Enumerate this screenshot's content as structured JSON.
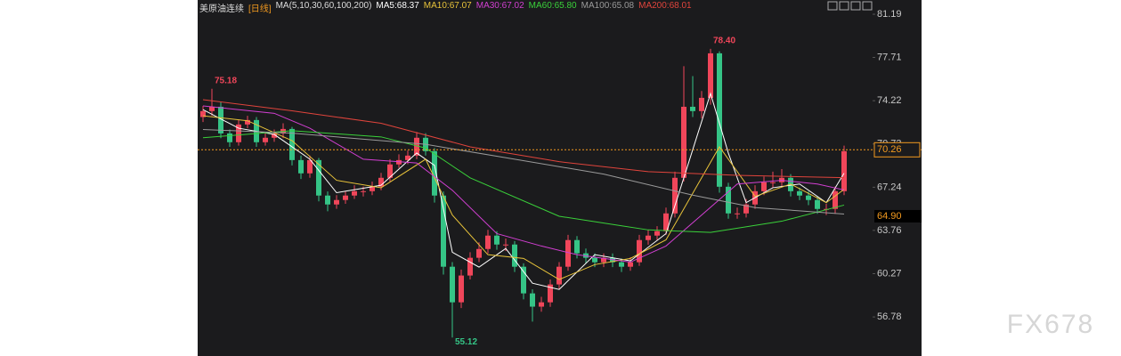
{
  "chart_data": {
    "type": "candlestick",
    "title": "美原油连续",
    "period": "[日线]",
    "ma_label": "MA(5,10,30,60,100,200)",
    "ylim": [
      53.63,
      82.34
    ],
    "yticks": [
      81.19,
      77.71,
      74.22,
      70.73,
      67.24,
      63.76,
      60.27,
      56.78
    ],
    "up_color": "#f0465a",
    "down_color": "#35c486",
    "open": [
      72.9,
      73.38,
      73.73,
      71.58,
      70.87,
      72.3,
      72.66,
      70.87,
      71.23,
      71.58,
      71.94,
      69.43,
      68.36,
      69.43,
      66.57,
      65.85,
      66.21,
      66.57,
      66.92,
      66.92,
      67.28,
      68.0,
      69.08,
      69.43,
      69.79,
      71.23,
      70.15,
      66.57,
      60.83,
      57.96,
      60.12,
      61.55,
      62.26,
      63.34,
      62.62,
      62.62,
      60.83,
      58.68,
      57.61,
      57.96,
      59.4,
      60.83,
      62.98,
      61.91,
      61.55,
      61.19,
      61.55,
      61.19,
      60.83,
      61.19,
      62.98,
      63.34,
      63.7,
      65.13,
      68.0,
      73.73,
      73.38,
      74.45,
      78.04,
      67.28,
      65.13,
      65.13,
      65.85,
      66.92,
      67.64,
      67.64,
      68.0,
      66.92,
      66.57,
      66.21,
      65.49,
      65.49,
      66.92
    ],
    "close": [
      73.38,
      73.73,
      71.58,
      70.87,
      72.3,
      72.66,
      70.87,
      71.23,
      71.58,
      71.94,
      69.43,
      68.36,
      69.43,
      66.57,
      65.85,
      66.21,
      66.57,
      66.92,
      66.92,
      67.28,
      68.0,
      69.08,
      69.43,
      69.79,
      71.23,
      70.15,
      66.57,
      60.83,
      57.96,
      60.12,
      61.55,
      62.26,
      63.34,
      62.62,
      62.62,
      60.83,
      58.68,
      57.61,
      57.96,
      59.4,
      60.83,
      62.98,
      61.91,
      61.55,
      61.19,
      61.55,
      61.19,
      60.83,
      61.19,
      62.98,
      63.34,
      63.7,
      65.13,
      68.0,
      73.73,
      73.38,
      74.45,
      78.04,
      67.28,
      65.13,
      65.13,
      65.85,
      66.92,
      67.64,
      67.64,
      68.0,
      66.92,
      66.57,
      66.21,
      65.49,
      65.49,
      66.92,
      70.15
    ],
    "high": [
      73.8,
      75.18,
      74.1,
      71.9,
      72.7,
      73.0,
      72.9,
      71.6,
      71.9,
      72.4,
      72.1,
      69.8,
      69.8,
      69.6,
      66.9,
      66.6,
      66.9,
      67.4,
      67.3,
      67.7,
      68.4,
      69.5,
      69.9,
      70.2,
      71.7,
      71.6,
      70.4,
      66.9,
      61.2,
      60.6,
      62.0,
      62.8,
      63.8,
      63.7,
      63.1,
      62.9,
      61.1,
      59.0,
      58.4,
      59.8,
      61.2,
      63.4,
      63.3,
      62.3,
      61.9,
      61.9,
      61.9,
      61.5,
      61.6,
      63.4,
      63.8,
      64.1,
      65.6,
      68.5,
      77.0,
      76.2,
      75.0,
      78.4,
      78.2,
      67.6,
      65.6,
      66.3,
      67.4,
      68.1,
      68.5,
      68.7,
      68.3,
      67.2,
      66.9,
      66.5,
      65.9,
      67.3,
      70.6
    ],
    "low": [
      72.5,
      73.0,
      71.2,
      70.5,
      70.6,
      72.0,
      70.5,
      70.6,
      70.9,
      71.2,
      69.0,
      67.9,
      68.0,
      66.1,
      65.3,
      65.5,
      65.9,
      66.3,
      66.5,
      66.6,
      67.0,
      67.7,
      68.8,
      69.1,
      69.5,
      69.8,
      66.0,
      60.2,
      55.12,
      57.5,
      59.8,
      61.2,
      61.9,
      62.2,
      62.1,
      60.4,
      58.2,
      56.4,
      57.2,
      57.6,
      59.0,
      60.5,
      61.5,
      61.1,
      60.8,
      60.8,
      60.8,
      60.4,
      60.5,
      60.9,
      62.6,
      63.0,
      63.4,
      64.8,
      67.7,
      72.9,
      72.8,
      73.9,
      66.8,
      64.7,
      64.7,
      64.8,
      65.5,
      66.6,
      67.2,
      67.3,
      66.5,
      66.2,
      65.8,
      65.1,
      65.0,
      65.1,
      66.6
    ],
    "series": [
      {
        "name": "MA5:68.37",
        "color": "#ffffff",
        "x": [
          0,
          4,
          8,
          12,
          15,
          20,
          24,
          26,
          28,
          31,
          34,
          37,
          40,
          44,
          48,
          52,
          54,
          57,
          59,
          61,
          64,
          67,
          70,
          72
        ],
        "values": [
          73.5,
          72.0,
          71.5,
          69.5,
          66.8,
          67.4,
          70.0,
          69.0,
          62.0,
          60.8,
          62.3,
          59.5,
          59.0,
          61.8,
          61.3,
          63.5,
          68.0,
          74.8,
          70.0,
          66.0,
          67.2,
          67.5,
          66.0,
          68.37
        ]
      },
      {
        "name": "MA10:67.07",
        "color": "#e8c33a",
        "x": [
          0,
          5,
          10,
          15,
          20,
          25,
          28,
          32,
          36,
          40,
          44,
          48,
          52,
          56,
          58,
          62,
          66,
          70,
          72
        ],
        "values": [
          73.0,
          72.6,
          71.0,
          67.8,
          67.2,
          69.5,
          65.0,
          61.8,
          61.5,
          59.8,
          61.0,
          61.5,
          63.0,
          68.0,
          70.5,
          66.5,
          67.5,
          66.0,
          67.07
        ]
      },
      {
        "name": "MA30:67.02",
        "color": "#d23fd2",
        "x": [
          0,
          8,
          12,
          18,
          24,
          28,
          33,
          38,
          42,
          48,
          52,
          56,
          60,
          65,
          69,
          72
        ],
        "values": [
          73.8,
          73.2,
          72.0,
          69.5,
          69.2,
          67.0,
          63.5,
          62.5,
          61.8,
          61.2,
          62.5,
          65.0,
          67.5,
          67.8,
          67.5,
          67.02
        ]
      },
      {
        "name": "MA60:65.80",
        "color": "#3ad13a",
        "x": [
          0,
          10,
          20,
          25,
          30,
          40,
          50,
          57,
          65,
          72
        ],
        "values": [
          71.23,
          71.8,
          71.3,
          70.4,
          68.0,
          64.9,
          63.8,
          63.6,
          64.5,
          65.8
        ]
      },
      {
        "name": "MA100:65.08",
        "color": "#9a9a9a",
        "x": [
          0,
          10,
          25,
          35,
          45,
          55,
          62,
          72
        ],
        "values": [
          71.9,
          71.6,
          70.7,
          69.5,
          68.3,
          66.6,
          65.6,
          65.08
        ]
      },
      {
        "name": "MA200:68.01",
        "color": "#e0443c",
        "x": [
          0,
          10,
          20,
          30,
          40,
          50,
          60,
          72
        ],
        "values": [
          74.3,
          73.4,
          72.4,
          70.5,
          69.3,
          68.5,
          68.2,
          68.01
        ]
      }
    ],
    "annotations": [
      {
        "label": "78.40",
        "value": 78.4
      },
      {
        "label": "75.18",
        "value": 75.18
      },
      {
        "label": "55.12",
        "value": 55.12
      }
    ],
    "current_price": 70.26,
    "marker_price": {
      "value": 64.9,
      "label": "64.90"
    },
    "watermark": "FX678"
  }
}
